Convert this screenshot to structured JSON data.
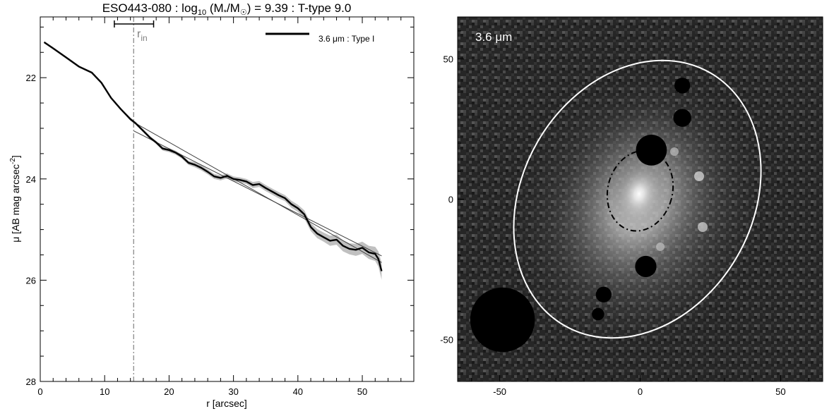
{
  "chart_data": [
    {
      "type": "line",
      "title": {
        "prefix": "ESO443-080 : log",
        "log_sub": "10",
        "mass_open": " (M",
        "mass_sub": "*",
        "mass_slash": "/M",
        "mass_sun": "☉",
        "suffix": ") = 9.39 : T-type 9.0"
      },
      "xlabel": "r [arcsec]",
      "ylabel": {
        "main": "μ [AB mag arcsec",
        "sup": "-2",
        "end": "]"
      },
      "xlim": [
        0,
        58
      ],
      "ylim": [
        28,
        20.8
      ],
      "y_inverted": true,
      "x_ticks": [
        0,
        10,
        20,
        30,
        40,
        50
      ],
      "y_ticks": [
        22,
        24,
        26,
        28
      ],
      "x_minor_step": 2,
      "y_minor_step": 0.5,
      "legend": {
        "label": "3.6 μm : Type I",
        "color": "#000000",
        "position": "top-right"
      },
      "r_in": {
        "label_main": "r",
        "label_sub": "in",
        "value": 14.5,
        "error_range": [
          11.5,
          17.6
        ],
        "color": "#808080"
      },
      "series": [
        {
          "name": "3.6 μm : Type I",
          "color": "#000000",
          "band_color": "#c0c0c0",
          "x": [
            0.6,
            2,
            4,
            6,
            8,
            9.5,
            11,
            12.5,
            14,
            14.8,
            16,
            17,
            18,
            19,
            20,
            21,
            22,
            23,
            24,
            25,
            26,
            27,
            28,
            29,
            30,
            31,
            32,
            33,
            34,
            35,
            36,
            37,
            38,
            39,
            40,
            41,
            42,
            43,
            44,
            45,
            46,
            47,
            48,
            49,
            50,
            51,
            52,
            52.5,
            53
          ],
          "y": [
            21.3,
            21.42,
            21.6,
            21.78,
            21.9,
            22.1,
            22.4,
            22.62,
            22.82,
            22.9,
            23.05,
            23.18,
            23.28,
            23.4,
            23.43,
            23.48,
            23.56,
            23.68,
            23.72,
            23.78,
            23.86,
            23.95,
            23.98,
            23.94,
            24.0,
            24.02,
            24.05,
            24.12,
            24.1,
            24.18,
            24.25,
            24.32,
            24.38,
            24.5,
            24.58,
            24.7,
            24.95,
            25.08,
            25.15,
            25.22,
            25.2,
            25.32,
            25.38,
            25.4,
            25.36,
            25.45,
            25.48,
            25.58,
            25.82
          ],
          "band_halfwidth": [
            0.02,
            0.02,
            0.02,
            0.02,
            0.02,
            0.02,
            0.02,
            0.02,
            0.03,
            0.03,
            0.03,
            0.03,
            0.03,
            0.04,
            0.04,
            0.04,
            0.04,
            0.04,
            0.05,
            0.05,
            0.05,
            0.05,
            0.05,
            0.05,
            0.05,
            0.05,
            0.05,
            0.06,
            0.06,
            0.06,
            0.06,
            0.06,
            0.06,
            0.07,
            0.07,
            0.08,
            0.08,
            0.09,
            0.09,
            0.1,
            0.1,
            0.11,
            0.11,
            0.12,
            0.12,
            0.13,
            0.14,
            0.15,
            0.17
          ]
        }
      ],
      "fit_lines": [
        {
          "x": [
            14.5,
            53
          ],
          "y": [
            22.88,
            25.65
          ],
          "color": "#404040"
        },
        {
          "x": [
            14.5,
            53
          ],
          "y": [
            23.05,
            25.52
          ],
          "color": "#404040"
        }
      ]
    },
    {
      "type": "heatmap",
      "image_label": {
        "main": "3.6 ",
        "unit": "μm"
      },
      "xlim": [
        -65,
        65
      ],
      "ylim": [
        -65,
        65
      ],
      "x_ticks": [
        -50,
        0,
        50
      ],
      "y_ticks": [
        -50,
        0,
        50
      ],
      "x_minor_step": 10,
      "y_minor_step": 10,
      "ellipses": [
        {
          "name": "outer-aperture",
          "center": [
            -1,
            0
          ],
          "semi_major": 52,
          "semi_minor": 41,
          "position_angle_deg": 30,
          "color": "#ffffff",
          "style": "solid"
        },
        {
          "name": "inner-r-in",
          "center": [
            0,
            3
          ],
          "semi_major": 14.5,
          "semi_minor": 11.5,
          "position_angle_deg": 15,
          "color": "#000000",
          "style": "dash-dot"
        }
      ],
      "masks": [
        {
          "name": "mask-large",
          "center": [
            -49,
            -43
          ],
          "radius": 11.5
        },
        {
          "name": "mask-top",
          "center": [
            4,
            17.5
          ],
          "radius": 5.5
        },
        {
          "name": "mask-upper-right",
          "center": [
            15,
            29
          ],
          "radius": 3.2
        },
        {
          "name": "mask-far-top",
          "center": [
            15,
            40.5
          ],
          "radius": 2.8
        },
        {
          "name": "mask-mid",
          "center": [
            2,
            -24
          ],
          "radius": 3.8
        },
        {
          "name": "mask-left",
          "center": [
            -13,
            -34
          ],
          "radius": 2.8
        },
        {
          "name": "mask-bottom-left",
          "center": [
            -15,
            -41
          ],
          "radius": 2.2
        }
      ]
    }
  ]
}
